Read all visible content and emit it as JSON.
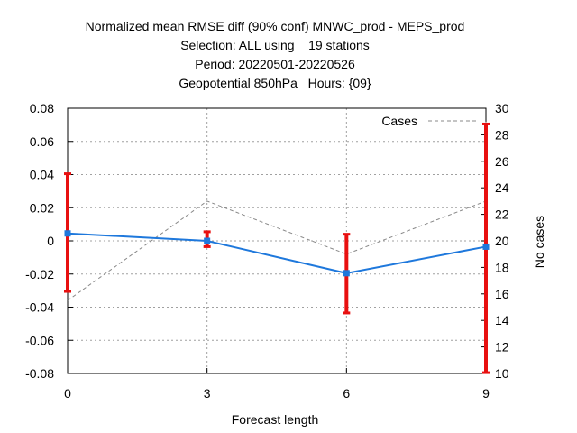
{
  "chart_data": {
    "type": "line",
    "title_lines": [
      "Normalized mean RMSE diff (90% conf) MNWC_prod - MEPS_prod",
      "Selection: ALL using    19 stations",
      "Period: 20220501-20220526",
      "Geopotential 850hPa   Hours: {09}"
    ],
    "xlabel": "Forecast length",
    "ylabel": "",
    "y2label": "No cases",
    "x_ticks": [
      0,
      3,
      6,
      9
    ],
    "xlim": [
      0,
      9
    ],
    "ylim": [
      -0.08,
      0.08
    ],
    "y_ticks": [
      -0.08,
      -0.06,
      -0.04,
      -0.02,
      0,
      0.02,
      0.04,
      0.06,
      0.08
    ],
    "y_tick_labels": [
      "-0.08",
      "-0.06",
      "-0.04",
      "-0.02",
      "0",
      "0.02",
      "0.04",
      "0.06",
      "0.08"
    ],
    "y2lim": [
      10,
      30
    ],
    "y2_ticks": [
      10,
      12,
      14,
      16,
      18,
      20,
      22,
      24,
      26,
      28,
      30
    ],
    "grid": true,
    "legend_position": "top-right",
    "series": [
      {
        "name": "",
        "axis": "left",
        "color": "#1e78dc",
        "x": [
          0,
          3,
          6,
          9
        ],
        "y": [
          0.0045,
          0.0,
          -0.0195,
          -0.0035
        ],
        "error_low": [
          -0.0305,
          -0.0035,
          -0.0435,
          -0.0795
        ],
        "error_high": [
          0.0405,
          0.0055,
          0.004,
          0.0705
        ],
        "error_color": "#e81010"
      },
      {
        "name": "Cases",
        "axis": "right",
        "color": "#888888",
        "style": "dashed",
        "x": [
          0,
          3,
          6,
          9
        ],
        "y": [
          15.5,
          23.0,
          19.0,
          23.0
        ],
        "y_last_edge": 29.0
      }
    ]
  }
}
